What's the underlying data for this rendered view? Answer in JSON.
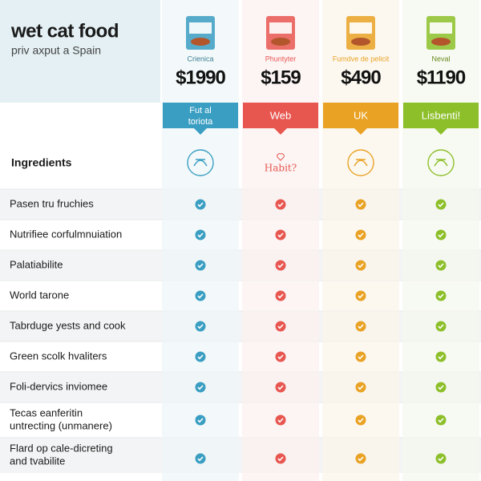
{
  "header": {
    "title": "wet cat food",
    "subtitle": "priv axput a Spain"
  },
  "columns": [
    {
      "name": "Crienica",
      "price": "$1990",
      "tab_lines": [
        "Fut al",
        "toriota"
      ],
      "color": "#3a9ec2",
      "tint": "#eef6f8"
    },
    {
      "name": "Phuntyter",
      "price": "$159",
      "tab_lines": [
        "Web"
      ],
      "color": "#e85650",
      "tint": "#fbf1f0",
      "icon_text": "Habit?"
    },
    {
      "name": "Fumdve de pelicit",
      "price": "$490",
      "tab_lines": [
        "UK"
      ],
      "color": "#e9a224",
      "tint": "#fbf5ea"
    },
    {
      "name": "Neval",
      "price": "$1190",
      "tab_lines": [
        "Lisbenti!"
      ],
      "color": "#8dbf2a",
      "tint": "#f4f8ec"
    }
  ],
  "section_label": "Ingredients",
  "rows": [
    {
      "label_lines": [
        "Pasen tru fruchies"
      ]
    },
    {
      "label_lines": [
        "Nutrifiee corfulmnuiation"
      ]
    },
    {
      "label_lines": [
        "Palatiabilite"
      ]
    },
    {
      "label_lines": [
        "World tarone"
      ]
    },
    {
      "label_lines": [
        "Tabrduge yests and cook"
      ]
    },
    {
      "label_lines": [
        "Green scolk hvaliters"
      ]
    },
    {
      "label_lines": [
        "Foli-dervics inviomee"
      ]
    },
    {
      "label_lines": [
        "Tecas eanferitin",
        "untrecting (unmanere)"
      ]
    },
    {
      "label_lines": [
        "Flard op cale-dicreting",
        "and tvabilite"
      ]
    }
  ]
}
